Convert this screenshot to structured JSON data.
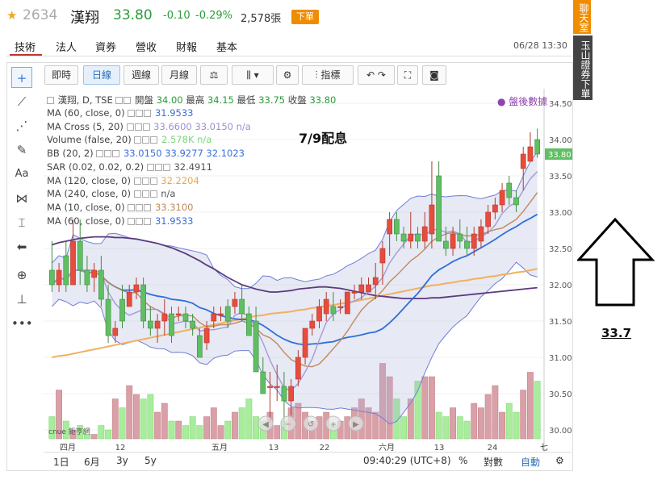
{
  "header": {
    "code": "2634",
    "name": "漢翔",
    "price": "33.80",
    "change": "-0.10",
    "change_pct": "-0.29%",
    "volume": "2,578張",
    "order_label": "下單"
  },
  "tabs": [
    "技術",
    "法人",
    "資券",
    "營收",
    "財報",
    "基本"
  ],
  "datetime": "06/28 13:30",
  "side_tabs": {
    "chat": "聊天室",
    "trade": "玉山證券下單"
  },
  "toolbar": {
    "intraday": "即時",
    "daily": "日線",
    "weekly": "週線",
    "monthly": "月線",
    "indicators": "指標"
  },
  "symbol_line": {
    "symbol": "漢翔, D, TSE",
    "open_label": "開盤",
    "open": "34.00",
    "high_label": "最高",
    "high": "34.15",
    "low_label": "最低",
    "low": "33.75",
    "close_label": "收盤",
    "close": "33.80"
  },
  "after_hours": "盤後數據",
  "legends": [
    {
      "label": "MA (60, close, 0)",
      "value": "31.9533",
      "color": "#3a6fd8"
    },
    {
      "label": "MA Cross (5, 20)",
      "value": "33.6600",
      "value2": "33.0150",
      "value3": "n/a",
      "color": "#9b8fd0"
    },
    {
      "label": "Volume (false, 20)",
      "value": "2.578K",
      "value2": "n/a",
      "color": "#7ed67e"
    },
    {
      "label": "BB (20, 2)",
      "value": "33.0150",
      "value2": "33.9277",
      "value3": "32.1023",
      "color": "#3a6fd8"
    },
    {
      "label": "SAR (0.02, 0.02, 0.2)",
      "value": "32.4911",
      "color": "#555"
    },
    {
      "label": "MA (120, close, 0)",
      "value": "32.2204",
      "color": "#e8a84a"
    },
    {
      "label": "MA (240, close, 0)",
      "value": "n/a",
      "color": "#555"
    },
    {
      "label": "MA (10, close, 0)",
      "value": "33.3100",
      "color": "#c08a5a"
    },
    {
      "label": "MA (60, close, 0)",
      "value": "31.9533",
      "color": "#3a6fd8"
    }
  ],
  "annotation": "7/9配息",
  "y_axis": [
    "34.50",
    "34.00",
    "33.50",
    "33.00",
    "32.50",
    "32.00",
    "31.50",
    "31.00",
    "30.50",
    "30.00"
  ],
  "last_price_tag": "33.80",
  "x_axis": [
    "四月",
    "12",
    "五月",
    "13",
    "22",
    "六月",
    "13",
    "24",
    "七"
  ],
  "bottom": {
    "ranges": [
      "1日",
      "6月",
      "3y",
      "5y"
    ],
    "clock": "09:40:29 (UTC+8)",
    "pct": "%",
    "log": "對數",
    "auto": "自動"
  },
  "logo_text": "cnue 鉅亨網",
  "side_note": "33.7",
  "chart_data": {
    "type": "candlestick",
    "ylim": [
      29.7,
      34.7
    ],
    "ohlc": [
      [
        32.2,
        32.6,
        31.9,
        32.0
      ],
      [
        32.0,
        32.3,
        31.9,
        32.2
      ],
      [
        32.4,
        32.6,
        31.9,
        32.0
      ],
      [
        32.0,
        32.9,
        32.0,
        32.6
      ],
      [
        32.6,
        32.9,
        32.0,
        32.2
      ],
      [
        32.2,
        32.4,
        31.9,
        32.0
      ],
      [
        32.1,
        32.3,
        31.9,
        32.2
      ],
      [
        32.2,
        32.4,
        31.7,
        31.8
      ],
      [
        31.8,
        32.0,
        31.2,
        31.3
      ],
      [
        31.3,
        31.5,
        31.2,
        31.4
      ],
      [
        31.8,
        32.0,
        31.4,
        31.5
      ],
      [
        31.7,
        32.0,
        31.7,
        31.9
      ],
      [
        31.9,
        32.1,
        31.8,
        32.0
      ],
      [
        32.0,
        32.1,
        31.4,
        31.5
      ],
      [
        31.5,
        31.7,
        31.3,
        31.4
      ],
      [
        31.4,
        31.6,
        31.2,
        31.5
      ],
      [
        31.5,
        31.8,
        31.3,
        31.6
      ],
      [
        31.6,
        31.7,
        31.2,
        31.3
      ],
      [
        31.6,
        31.7,
        31.5,
        31.6
      ],
      [
        31.6,
        31.7,
        31.4,
        31.5
      ],
      [
        31.5,
        31.6,
        31.3,
        31.4
      ],
      [
        31.3,
        31.4,
        31.0,
        31.0
      ],
      [
        31.2,
        31.5,
        31.1,
        31.4
      ],
      [
        31.5,
        31.7,
        31.4,
        31.6
      ],
      [
        31.6,
        31.7,
        31.5,
        31.6
      ],
      [
        31.7,
        31.8,
        31.4,
        31.5
      ],
      [
        31.7,
        31.9,
        31.6,
        31.8
      ],
      [
        31.8,
        32.0,
        31.5,
        31.6
      ],
      [
        31.6,
        31.7,
        31.3,
        31.3
      ],
      [
        31.5,
        31.7,
        30.8,
        30.8
      ],
      [
        30.8,
        31.0,
        30.5,
        30.5
      ],
      [
        30.6,
        30.8,
        30.1,
        30.6
      ],
      [
        30.6,
        30.9,
        30.4,
        30.6
      ],
      [
        30.6,
        30.8,
        30.0,
        30.4
      ],
      [
        30.4,
        30.7,
        30.2,
        30.6
      ],
      [
        30.7,
        31.1,
        30.6,
        31.0
      ],
      [
        31.0,
        31.4,
        30.9,
        31.4
      ],
      [
        31.4,
        31.6,
        31.3,
        31.5
      ],
      [
        31.5,
        31.8,
        31.4,
        31.7
      ],
      [
        31.6,
        31.9,
        31.5,
        31.8
      ],
      [
        31.7,
        31.9,
        31.5,
        31.6
      ],
      [
        31.7,
        31.8,
        31.6,
        31.7
      ],
      [
        31.6,
        31.9,
        31.6,
        31.9
      ],
      [
        31.9,
        32.0,
        31.8,
        31.9
      ],
      [
        31.9,
        32.1,
        31.8,
        32.0
      ],
      [
        31.9,
        32.1,
        31.9,
        32.0
      ],
      [
        32.0,
        32.3,
        31.8,
        32.1
      ],
      [
        32.3,
        32.6,
        32.0,
        32.5
      ],
      [
        32.7,
        33.0,
        32.4,
        32.9
      ],
      [
        32.9,
        33.0,
        32.6,
        32.7
      ],
      [
        32.7,
        32.8,
        32.5,
        32.6
      ],
      [
        32.6,
        33.0,
        32.5,
        32.7
      ],
      [
        32.7,
        32.8,
        32.5,
        32.6
      ],
      [
        32.6,
        33.0,
        32.5,
        32.8
      ],
      [
        32.7,
        33.7,
        32.5,
        33.1
      ],
      [
        33.5,
        33.7,
        32.6,
        32.6
      ],
      [
        32.6,
        32.8,
        32.4,
        32.5
      ],
      [
        32.5,
        32.8,
        32.4,
        32.7
      ],
      [
        32.7,
        32.9,
        32.5,
        32.6
      ],
      [
        32.6,
        32.8,
        32.4,
        32.5
      ],
      [
        32.5,
        32.8,
        32.4,
        32.7
      ],
      [
        32.6,
        32.9,
        32.5,
        32.8
      ],
      [
        32.8,
        33.1,
        32.7,
        33.0
      ],
      [
        33.0,
        33.2,
        32.9,
        33.1
      ],
      [
        33.1,
        33.4,
        33.0,
        33.3
      ],
      [
        33.4,
        33.5,
        33.1,
        33.2
      ],
      [
        33.2,
        33.3,
        33.0,
        33.1
      ],
      [
        33.6,
        33.9,
        33.3,
        33.8
      ],
      [
        33.7,
        34.1,
        33.7,
        33.9
      ],
      [
        34.0,
        34.15,
        33.75,
        33.8
      ]
    ],
    "volume": [
      5,
      11,
      4,
      2,
      3,
      1,
      1,
      3,
      2,
      9,
      7,
      12,
      10,
      9,
      10,
      6,
      8,
      4,
      4,
      3,
      5,
      3,
      5,
      7,
      3,
      4,
      6,
      7,
      9,
      5,
      4,
      6,
      3,
      4,
      7,
      8,
      6,
      4,
      5,
      6,
      3,
      4,
      5,
      7,
      9,
      7,
      6,
      17,
      14,
      9,
      5,
      9,
      13,
      14,
      14,
      6,
      5,
      7,
      5,
      4,
      8,
      7,
      10,
      12,
      6,
      8,
      6,
      11,
      15,
      13
    ],
    "series": [
      {
        "name": "MA (60, close, 0)",
        "values": [
          32.55,
          32.58,
          32.6,
          32.62,
          32.64,
          32.65,
          32.66,
          32.66,
          32.66,
          32.65,
          32.65,
          32.64,
          32.63,
          32.61,
          32.59,
          32.57,
          32.54,
          32.51,
          32.47,
          32.43,
          32.38,
          32.33,
          32.27,
          32.22,
          32.16,
          32.1,
          32.05,
          32.0,
          31.97,
          31.94,
          31.92,
          31.9,
          31.9,
          31.91,
          31.92,
          31.94,
          31.95,
          31.96,
          31.97,
          31.97,
          31.96,
          31.95,
          31.93,
          31.91,
          31.89,
          31.87,
          31.85,
          31.84,
          31.83,
          31.82,
          31.81,
          31.81,
          31.81,
          31.81,
          31.82,
          31.82,
          31.83,
          31.84,
          31.85,
          31.86,
          31.87,
          31.88,
          31.89,
          31.9,
          31.91,
          31.92,
          31.93,
          31.94,
          31.95,
          31.96
        ]
      },
      {
        "name": "MA (120, close, 0)",
        "values": [
          31.0,
          31.02,
          31.03,
          31.05,
          31.07,
          31.09,
          31.11,
          31.13,
          31.15,
          31.17,
          31.19,
          31.21,
          31.23,
          31.25,
          31.27,
          31.29,
          31.31,
          31.33,
          31.35,
          31.37,
          31.39,
          31.41,
          31.43,
          31.45,
          31.47,
          31.49,
          31.51,
          31.53,
          31.55,
          31.57,
          31.58,
          31.6,
          31.61,
          31.62,
          31.63,
          31.65,
          31.66,
          31.68,
          31.69,
          31.71,
          31.72,
          31.74,
          31.75,
          31.77,
          31.79,
          31.81,
          31.83,
          31.85,
          31.87,
          31.89,
          31.91,
          31.93,
          31.95,
          31.97,
          31.99,
          32.0,
          32.02,
          32.03,
          32.05,
          32.06,
          32.08,
          32.09,
          32.11,
          32.12,
          32.14,
          32.15,
          32.17,
          32.18,
          32.2,
          32.22
        ]
      }
    ]
  }
}
